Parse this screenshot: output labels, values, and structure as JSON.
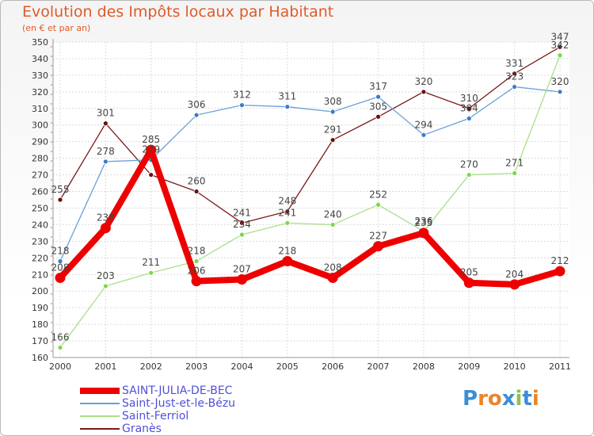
{
  "header": {
    "title": "Evolution des Impôts locaux par Habitant",
    "subtitle": "(en € et par an)"
  },
  "chart_data": {
    "type": "line",
    "title": "Evolution des Impôts locaux par Habitant",
    "subtitle": "(en € et par an)",
    "xlabel": "",
    "ylabel": "",
    "ylim": [
      160,
      350
    ],
    "ytick_step": 10,
    "grid": true,
    "legend_position": "bottom-left",
    "categories": [
      "2000",
      "2001",
      "2002",
      "2003",
      "2004",
      "2005",
      "2006",
      "2007",
      "2008",
      "2009",
      "2010",
      "2011"
    ],
    "series": [
      {
        "name": "Granès",
        "color": "#7a1a1a",
        "marker": "#6a1010",
        "weight": "thin",
        "values": [
          255,
          301,
          270,
          260,
          241,
          248,
          291,
          305,
          320,
          310,
          331,
          347
        ],
        "labels": [
          "255",
          "301",
          "",
          "260",
          "241",
          "248",
          "291",
          "305",
          "320",
          "310",
          "331",
          "347"
        ]
      },
      {
        "name": "Saint-Just-et-le-Bézu",
        "color": "#6a9fd8",
        "marker": "#3a7cc8",
        "weight": "thin",
        "values": [
          218,
          278,
          279,
          306,
          312,
          311,
          308,
          317,
          294,
          304,
          323,
          320
        ],
        "labels": [
          "218",
          "278",
          "279",
          "306",
          "312",
          "311",
          "308",
          "317",
          "294",
          "304",
          "323",
          "320"
        ]
      },
      {
        "name": "Saint-Ferriol",
        "color": "#a8e08a",
        "marker": "#7cd84a",
        "weight": "thin",
        "values": [
          166,
          203,
          211,
          218,
          234,
          241,
          240,
          252,
          236,
          270,
          271,
          342
        ],
        "labels": [
          "166",
          "203",
          "211",
          "218",
          "234",
          "241",
          "240",
          "252",
          "236",
          "270",
          "271",
          "342"
        ]
      },
      {
        "name": "SAINT-JULIA-DE-BEC",
        "color": "#ee0000",
        "marker": "#ee0000",
        "weight": "thick",
        "values": [
          208,
          238,
          285,
          206,
          207,
          218,
          208,
          227,
          235,
          205,
          204,
          212
        ],
        "labels": [
          "208",
          "238",
          "285",
          "206",
          "207",
          "218",
          "208",
          "227",
          "235",
          "205",
          "204",
          "212"
        ]
      }
    ]
  },
  "legend": {
    "items": [
      {
        "label": "SAINT-JULIA-DE-BEC",
        "color": "#ee0000",
        "weight": "thick"
      },
      {
        "label": "Saint-Just-et-le-Bézu",
        "color": "#6a9fd8",
        "weight": "thin"
      },
      {
        "label": "Saint-Ferriol",
        "color": "#a8e08a",
        "weight": "thin"
      },
      {
        "label": "Granès",
        "color": "#7a1a1a",
        "weight": "thin"
      }
    ]
  },
  "logo": {
    "text": "Proxiti",
    "colors": [
      "#3b8fd6",
      "#e8862a",
      "#e8862a",
      "#3b8fd6",
      "#8bc34a",
      "#3b8fd6",
      "#e8862a"
    ]
  }
}
